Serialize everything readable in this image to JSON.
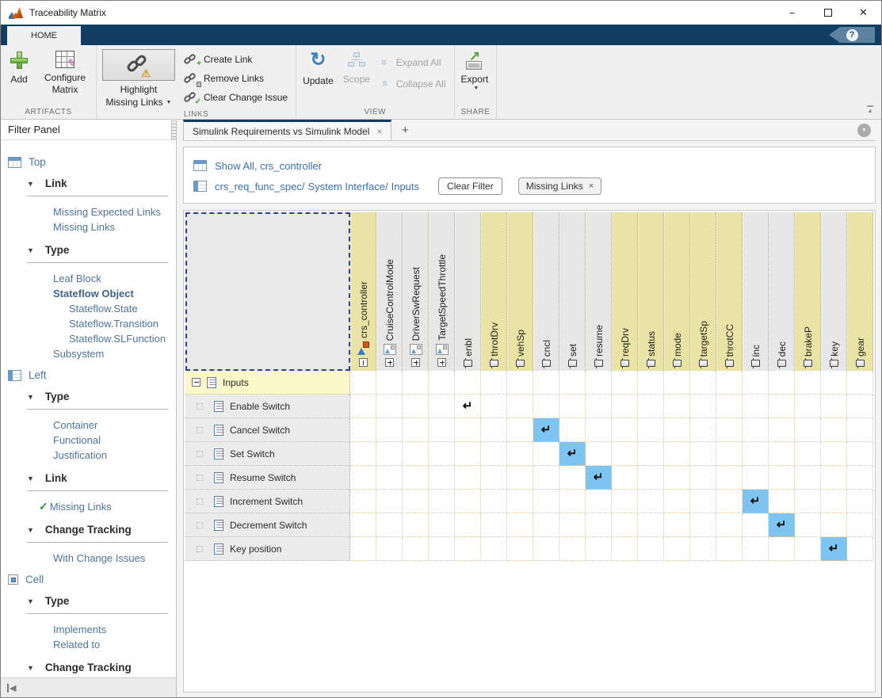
{
  "window": {
    "title": "Traceability Matrix"
  },
  "icons": {
    "help": "?",
    "minimize": "−",
    "close_window": "✕",
    "close": "×",
    "plus": "+",
    "dropdown": "▼",
    "overflow_arrow": "▼",
    "warning": "⚠",
    "check": "✓",
    "refresh": "↻",
    "chevrons": "»",
    "export_arrow": "↗",
    "collapse_ribbon": "▲",
    "collapse_left": "◀",
    "section_collapse": "▼",
    "link_arrow": "↵",
    "plus_badge": "+"
  },
  "colors": {
    "accent_navy": "#123d63",
    "header_highlight": "#e9e4a6",
    "row_highlight": "#fbf7c8",
    "link_cell_blue": "#7ec4f0",
    "header_gray": "#e7e7e7",
    "link_text": "#3a6fae"
  },
  "ribbon": {
    "tab": "HOME",
    "groups": [
      {
        "label": "ARTIFACTS",
        "items": [
          {
            "label": "Add",
            "icon": "add-plus-icon"
          },
          {
            "label": "Configure Matrix",
            "icon": "configure-grid-icon"
          }
        ]
      },
      {
        "label": "LINKS",
        "toggle": {
          "line1": "Highlight",
          "line2": "Missing Links",
          "icon": "link-warning-icon",
          "pressed": true
        },
        "actions": [
          {
            "label": "Create Link",
            "icon": "link-add-icon"
          },
          {
            "label": "Remove Links",
            "icon": "link-remove-icon"
          },
          {
            "label": "Clear Change Issue",
            "icon": "link-check-icon"
          }
        ]
      },
      {
        "label": "VIEW",
        "items": [
          {
            "label": "Update",
            "icon": "refresh-icon",
            "enabled": true
          },
          {
            "label": "Scope",
            "icon": "scope-icon",
            "enabled": false
          }
        ],
        "stack": [
          {
            "label": "Expand All",
            "icon": "chevrons-down-icon",
            "enabled": false
          },
          {
            "label": "Collapse All",
            "icon": "chevrons-up-icon",
            "enabled": false
          }
        ]
      },
      {
        "label": "SHARE",
        "items": [
          {
            "label": "Export",
            "icon": "export-icon",
            "dropdown": true
          }
        ]
      }
    ]
  },
  "sidebar": {
    "title": "Filter Panel",
    "groups": [
      {
        "label": "Top",
        "icon": "icon-table-top",
        "sections": [
          {
            "title": "Link",
            "items": [
              {
                "label": "Missing Expected Links"
              },
              {
                "label": "Missing Links"
              }
            ]
          },
          {
            "title": "Type",
            "items": [
              {
                "label": "Leaf Block"
              },
              {
                "label": "Stateflow Object",
                "bold": true
              },
              {
                "label": "Stateflow.State",
                "indent": 1
              },
              {
                "label": "Stateflow.Transition",
                "indent": 1
              },
              {
                "label": "Stateflow.SLFunction",
                "indent": 1
              },
              {
                "label": "Subsystem"
              }
            ]
          }
        ]
      },
      {
        "label": "Left",
        "icon": "icon-table-left",
        "sections": [
          {
            "title": "Type",
            "items": [
              {
                "label": "Container"
              },
              {
                "label": "Functional"
              },
              {
                "label": "Justification"
              }
            ]
          },
          {
            "title": "Link",
            "items": [
              {
                "label": "Missing Links",
                "checked": true
              }
            ]
          },
          {
            "title": "Change Tracking",
            "items": [
              {
                "label": "With Change Issues"
              }
            ]
          }
        ]
      },
      {
        "label": "Cell",
        "icon": "icon-cellsq",
        "sections": [
          {
            "title": "Type",
            "items": [
              {
                "label": "Implements"
              },
              {
                "label": "Related to"
              }
            ]
          },
          {
            "title": "Change Tracking",
            "items": [
              {
                "label": "With Change Issues"
              }
            ]
          }
        ]
      }
    ]
  },
  "main": {
    "tab": {
      "label": "Simulink Requirements vs Simulink Model"
    },
    "breadcrumbs": [
      {
        "icon": "icon-table-top",
        "parts": [
          {
            "text": "Show All, crs_controller"
          }
        ]
      },
      {
        "icon": "icon-table-left",
        "parts": [
          {
            "text": "crs_req_func_spec/"
          },
          {
            "text": "System Interface/"
          },
          {
            "text": "Inputs"
          }
        ]
      }
    ],
    "clear_filter_label": "Clear Filter",
    "filter_chip": {
      "label": "Missing Links"
    }
  },
  "matrix": {
    "columns": [
      {
        "label": "crs_controller",
        "type": "chart",
        "highlight": true,
        "expander": "minus"
      },
      {
        "label": "CruiseControlMode",
        "type": "subsystem",
        "highlight": false,
        "expander": "plus"
      },
      {
        "label": "DriverSwRequest",
        "type": "subsystem",
        "highlight": false,
        "expander": "plus"
      },
      {
        "label": "TargetSpeedThrottle",
        "type": "subsystem",
        "highlight": false,
        "expander": "plus"
      },
      {
        "label": "enbl",
        "type": "port",
        "highlight": false
      },
      {
        "label": "throtDrv",
        "type": "port",
        "highlight": true
      },
      {
        "label": "vehSp",
        "type": "port",
        "highlight": true
      },
      {
        "label": "cncl",
        "type": "port",
        "highlight": false
      },
      {
        "label": "set",
        "type": "port",
        "highlight": false
      },
      {
        "label": "resume",
        "type": "port",
        "highlight": false
      },
      {
        "label": "reqDrv",
        "type": "port",
        "highlight": true
      },
      {
        "label": "status",
        "type": "port",
        "highlight": true
      },
      {
        "label": "mode",
        "type": "port",
        "highlight": true
      },
      {
        "label": "targetSp",
        "type": "port",
        "highlight": true
      },
      {
        "label": "throtCC",
        "type": "port",
        "highlight": true
      },
      {
        "label": "inc",
        "type": "port",
        "highlight": false
      },
      {
        "label": "dec",
        "type": "port",
        "highlight": false
      },
      {
        "label": "brakeP",
        "type": "port",
        "highlight": true
      },
      {
        "label": "key",
        "type": "port",
        "highlight": false
      },
      {
        "label": "gear",
        "type": "port",
        "highlight": true
      }
    ],
    "rows": [
      {
        "label": "Inputs",
        "level": 0,
        "expander": "minus",
        "highlight": true,
        "links": []
      },
      {
        "label": "Enable Switch",
        "level": 1,
        "links": [
          {
            "col": 4,
            "selected": false
          }
        ]
      },
      {
        "label": "Cancel Switch",
        "level": 1,
        "links": [
          {
            "col": 7,
            "selected": true
          }
        ]
      },
      {
        "label": "Set Switch",
        "level": 1,
        "links": [
          {
            "col": 8,
            "selected": true
          }
        ]
      },
      {
        "label": "Resume Switch",
        "level": 1,
        "links": [
          {
            "col": 9,
            "selected": true
          }
        ]
      },
      {
        "label": "Increment Switch",
        "level": 1,
        "links": [
          {
            "col": 15,
            "selected": true
          }
        ]
      },
      {
        "label": "Decrement Switch",
        "level": 1,
        "links": [
          {
            "col": 16,
            "selected": true
          }
        ]
      },
      {
        "label": "Key position",
        "level": 1,
        "links": [
          {
            "col": 18,
            "selected": true
          }
        ]
      }
    ]
  }
}
